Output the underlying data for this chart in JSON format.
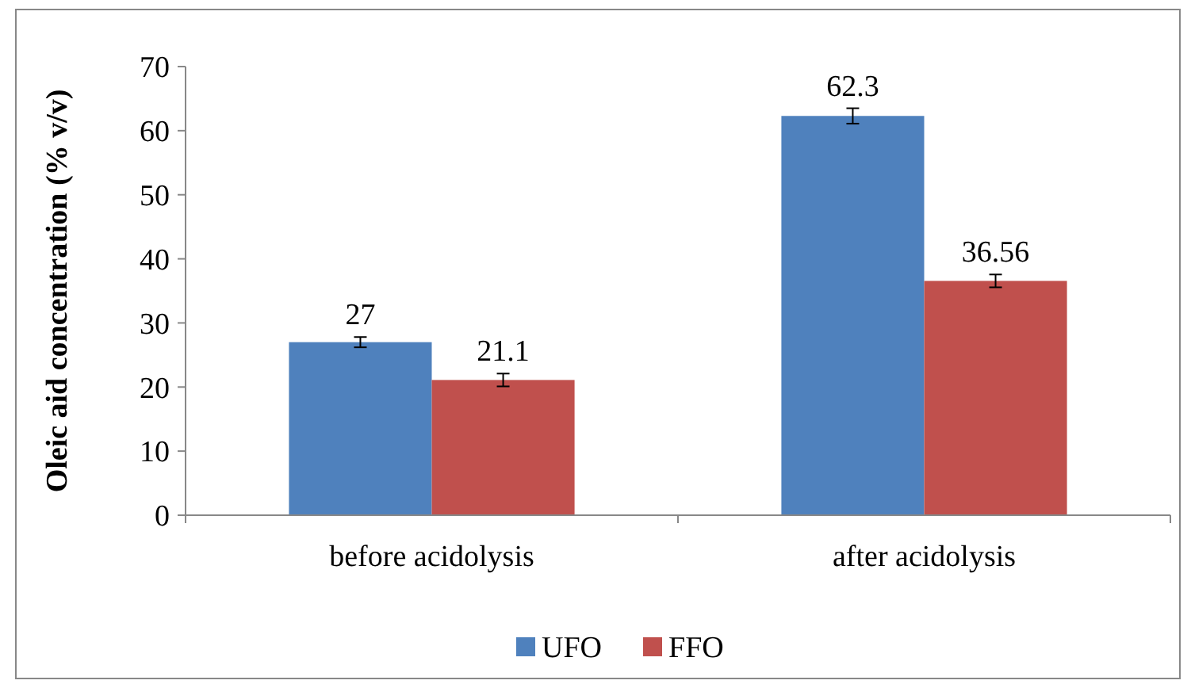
{
  "chart_data": {
    "type": "bar",
    "ylabel": "Oleic aid concentration (% v/v)",
    "categories": [
      "before acidolysis",
      "after acidolysis"
    ],
    "series": [
      {
        "name": "UFO",
        "color": "#4f81bd",
        "values": [
          27,
          62.3
        ],
        "errors": [
          0.8,
          1.2
        ]
      },
      {
        "name": "FFO",
        "color": "#c0504d",
        "values": [
          21.1,
          36.56
        ],
        "errors": [
          1,
          1
        ]
      }
    ],
    "ylim": [
      0,
      70
    ],
    "yticks": [
      0,
      10,
      20,
      30,
      40,
      50,
      60,
      70
    ],
    "data_labels": true,
    "legend": "bottom",
    "grid": false
  }
}
